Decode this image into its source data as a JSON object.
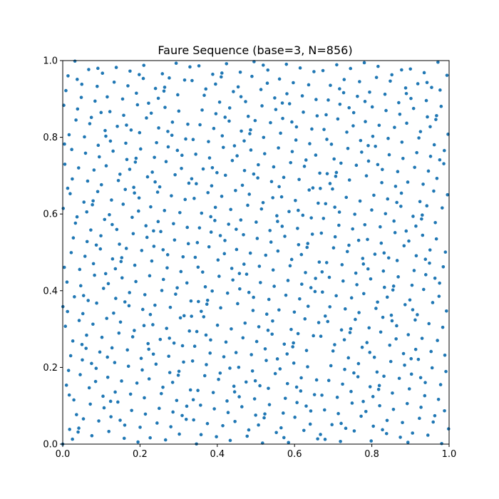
{
  "chart_data": {
    "type": "scatter",
    "title": "Faure Sequence (base=3, N=856)",
    "xlabel": "",
    "ylabel": "",
    "xlim": [
      0,
      1
    ],
    "ylim": [
      0,
      1
    ],
    "grid": false,
    "legend": "none",
    "aspect": "equal",
    "xticks": [
      0.0,
      0.2,
      0.4,
      0.6,
      0.8,
      1.0
    ],
    "yticks": [
      0.0,
      0.2,
      0.4,
      0.6,
      0.8,
      1.0
    ],
    "xtick_labels": [
      "0.0",
      "0.2",
      "0.4",
      "0.6",
      "0.8",
      "1.0"
    ],
    "ytick_labels": [
      "0.0",
      "0.2",
      "0.4",
      "0.6",
      "0.8",
      "1.0"
    ],
    "sequence": {
      "kind": "faure",
      "base": 3,
      "dimensions": 2,
      "n_points": 856
    },
    "series": [
      {
        "color": "#1f77b4",
        "marker": "circle"
      }
    ]
  }
}
